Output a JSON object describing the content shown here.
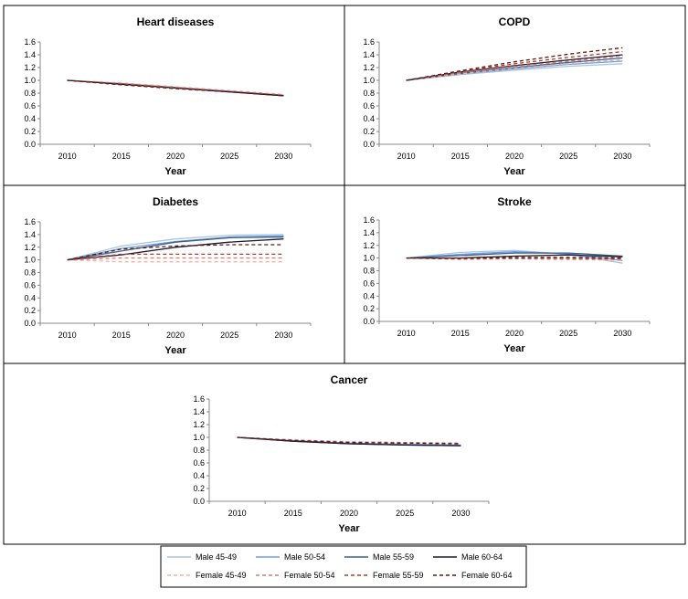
{
  "legend": [
    {
      "name": "Male 45-49",
      "color": "#a9c4e4",
      "dash": false
    },
    {
      "name": "Male 50-54",
      "color": "#6e9fd6",
      "dash": false
    },
    {
      "name": "Male 55-59",
      "color": "#3e5f8c",
      "dash": false
    },
    {
      "name": "Male 60-64",
      "color": "#1a1a2e",
      "dash": false
    },
    {
      "name": "Female 45-49",
      "color": "#f0b0a8",
      "dash": true
    },
    {
      "name": "Female 50-54",
      "color": "#d87a6a",
      "dash": true
    },
    {
      "name": "Female 55-59",
      "color": "#b03a2e",
      "dash": true
    },
    {
      "name": "Female 60-64",
      "color": "#5a1a10",
      "dash": true
    }
  ],
  "chart_data": [
    {
      "type": "line",
      "title": "Heart diseases",
      "xlabel": "Year",
      "ylabel": "",
      "x": [
        2010,
        2015,
        2020,
        2025,
        2030
      ],
      "ylim": [
        0,
        1.6
      ],
      "yticks": [
        "0.0",
        "0.2",
        "0.4",
        "0.6",
        "0.8",
        "1.0",
        "1.2",
        "1.4",
        "1.6"
      ],
      "series": [
        {
          "name": "Male 45-49",
          "values": [
            1.0,
            0.95,
            0.89,
            0.83,
            0.77
          ]
        },
        {
          "name": "Male 50-54",
          "values": [
            1.0,
            0.95,
            0.89,
            0.83,
            0.77
          ]
        },
        {
          "name": "Male 55-59",
          "values": [
            1.0,
            0.94,
            0.88,
            0.82,
            0.76
          ]
        },
        {
          "name": "Male 60-64",
          "values": [
            1.0,
            0.94,
            0.88,
            0.82,
            0.76
          ]
        },
        {
          "name": "Female 45-49",
          "values": [
            1.0,
            0.96,
            0.9,
            0.84,
            0.78
          ]
        },
        {
          "name": "Female 50-54",
          "values": [
            1.0,
            0.95,
            0.89,
            0.83,
            0.77
          ]
        },
        {
          "name": "Female 55-59",
          "values": [
            1.0,
            0.94,
            0.88,
            0.82,
            0.76
          ]
        },
        {
          "name": "Female 60-64",
          "values": [
            1.0,
            0.93,
            0.87,
            0.82,
            0.76
          ]
        }
      ]
    },
    {
      "type": "line",
      "title": "COPD",
      "xlabel": "Year",
      "ylabel": "",
      "x": [
        2010,
        2015,
        2020,
        2025,
        2030
      ],
      "ylim": [
        0,
        1.6
      ],
      "yticks": [
        "0.0",
        "0.2",
        "0.4",
        "0.6",
        "0.8",
        "1.0",
        "1.2",
        "1.4",
        "1.6"
      ],
      "series": [
        {
          "name": "Male 45-49",
          "values": [
            1.0,
            1.09,
            1.16,
            1.22,
            1.26
          ]
        },
        {
          "name": "Male 50-54",
          "values": [
            1.0,
            1.1,
            1.18,
            1.25,
            1.3
          ]
        },
        {
          "name": "Male 55-59",
          "values": [
            1.0,
            1.11,
            1.2,
            1.28,
            1.35
          ]
        },
        {
          "name": "Male 60-64",
          "values": [
            1.0,
            1.13,
            1.23,
            1.32,
            1.4
          ]
        },
        {
          "name": "Female 45-49",
          "values": [
            1.0,
            1.1,
            1.19,
            1.26,
            1.32
          ]
        },
        {
          "name": "Female 50-54",
          "values": [
            1.0,
            1.12,
            1.22,
            1.3,
            1.38
          ]
        },
        {
          "name": "Female 55-59",
          "values": [
            1.0,
            1.14,
            1.26,
            1.36,
            1.45
          ]
        },
        {
          "name": "Female 60-64",
          "values": [
            1.0,
            1.15,
            1.29,
            1.41,
            1.51
          ]
        }
      ]
    },
    {
      "type": "line",
      "title": "Diabetes",
      "xlabel": "Year",
      "ylabel": "",
      "x": [
        2010,
        2015,
        2020,
        2025,
        2030
      ],
      "ylim": [
        0,
        1.6
      ],
      "yticks": [
        "0.0",
        "0.2",
        "0.4",
        "0.6",
        "0.8",
        "1.0",
        "1.2",
        "1.4",
        "1.6"
      ],
      "series": [
        {
          "name": "Male 45-49",
          "values": [
            1.0,
            1.22,
            1.33,
            1.39,
            1.4
          ]
        },
        {
          "name": "Male 50-54",
          "values": [
            1.0,
            1.18,
            1.29,
            1.36,
            1.38
          ]
        },
        {
          "name": "Male 55-59",
          "values": [
            1.0,
            1.14,
            1.28,
            1.35,
            1.36
          ]
        },
        {
          "name": "Male 60-64",
          "values": [
            1.0,
            1.08,
            1.2,
            1.28,
            1.33
          ]
        },
        {
          "name": "Female 45-49",
          "values": [
            1.0,
            0.97,
            0.97,
            0.97,
            0.97
          ]
        },
        {
          "name": "Female 50-54",
          "values": [
            1.0,
            1.03,
            1.03,
            1.03,
            1.03
          ]
        },
        {
          "name": "Female 55-59",
          "values": [
            1.0,
            1.09,
            1.09,
            1.09,
            1.09
          ]
        },
        {
          "name": "Female 60-64",
          "values": [
            1.0,
            1.17,
            1.22,
            1.24,
            1.24
          ]
        }
      ]
    },
    {
      "type": "line",
      "title": "Stroke",
      "xlabel": "Year",
      "ylabel": "",
      "x": [
        2010,
        2015,
        2020,
        2025,
        2030
      ],
      "ylim": [
        0,
        1.6
      ],
      "yticks": [
        "0.0",
        "0.2",
        "0.4",
        "0.6",
        "0.8",
        "1.0",
        "1.2",
        "1.4",
        "1.6"
      ],
      "series": [
        {
          "name": "Male 45-49",
          "values": [
            1.0,
            1.09,
            1.12,
            1.06,
            0.92
          ]
        },
        {
          "name": "Male 50-54",
          "values": [
            1.0,
            1.06,
            1.1,
            1.07,
            0.96
          ]
        },
        {
          "name": "Male 55-59",
          "values": [
            1.0,
            1.04,
            1.08,
            1.08,
            1.03
          ]
        },
        {
          "name": "Male 60-64",
          "values": [
            1.0,
            1.0,
            1.03,
            1.05,
            1.02
          ]
        },
        {
          "name": "Female 45-49",
          "values": [
            1.0,
            0.99,
            1.0,
            0.99,
            0.96
          ]
        },
        {
          "name": "Female 50-54",
          "values": [
            1.0,
            0.98,
            0.99,
            0.98,
            0.98
          ]
        },
        {
          "name": "Female 55-59",
          "values": [
            1.0,
            0.99,
            1.0,
            1.0,
            0.99
          ]
        },
        {
          "name": "Female 60-64",
          "values": [
            1.0,
            1.0,
            1.01,
            1.01,
            1.0
          ]
        }
      ]
    },
    {
      "type": "line",
      "title": "Cancer",
      "xlabel": "Year",
      "ylabel": "",
      "x": [
        2010,
        2015,
        2020,
        2025,
        2030
      ],
      "ylim": [
        0,
        1.6
      ],
      "yticks": [
        "0.0",
        "0.2",
        "0.4",
        "0.6",
        "0.8",
        "1.0",
        "1.2",
        "1.4",
        "1.6"
      ],
      "series": [
        {
          "name": "Male 45-49",
          "values": [
            1.0,
            0.95,
            0.91,
            0.89,
            0.88
          ]
        },
        {
          "name": "Male 50-54",
          "values": [
            1.0,
            0.95,
            0.91,
            0.89,
            0.88
          ]
        },
        {
          "name": "Male 55-59",
          "values": [
            1.0,
            0.94,
            0.9,
            0.88,
            0.87
          ]
        },
        {
          "name": "Male 60-64",
          "values": [
            1.0,
            0.94,
            0.9,
            0.88,
            0.87
          ]
        },
        {
          "name": "Female 45-49",
          "values": [
            1.0,
            0.96,
            0.93,
            0.92,
            0.91
          ]
        },
        {
          "name": "Female 50-54",
          "values": [
            1.0,
            0.96,
            0.93,
            0.92,
            0.91
          ]
        },
        {
          "name": "Female 55-59",
          "values": [
            1.0,
            0.95,
            0.92,
            0.91,
            0.9
          ]
        },
        {
          "name": "Female 60-64",
          "values": [
            1.0,
            0.95,
            0.92,
            0.91,
            0.9
          ]
        }
      ]
    }
  ]
}
